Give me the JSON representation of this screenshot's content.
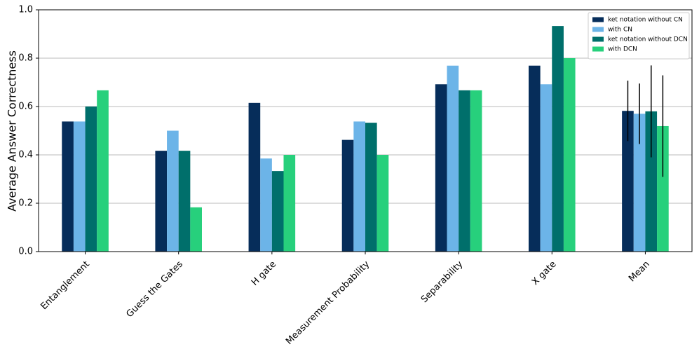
{
  "chart_data": {
    "type": "bar",
    "ylabel": "Average Answer Correctness",
    "categories": [
      "Entanglement",
      "Guess the Gates",
      "H gate",
      "Measurement Probability",
      "Separability",
      "X gate",
      "Mean"
    ],
    "series": [
      {
        "name": "ket notation without CN",
        "color": "#062d5a",
        "values": [
          0.538,
          0.417,
          0.615,
          0.462,
          0.692,
          0.769,
          0.582
        ],
        "errors": [
          null,
          null,
          null,
          null,
          null,
          null,
          0.125
        ]
      },
      {
        "name": "with CN",
        "color": "#6cb4e8",
        "values": [
          0.538,
          0.5,
          0.385,
          0.538,
          0.769,
          0.692,
          0.57
        ],
        "errors": [
          null,
          null,
          null,
          null,
          null,
          null,
          0.125
        ]
      },
      {
        "name": "ket notation without DCN",
        "color": "#006f6b",
        "values": [
          0.6,
          0.417,
          0.333,
          0.533,
          0.667,
          0.933,
          0.58
        ],
        "errors": [
          null,
          null,
          null,
          null,
          null,
          null,
          0.19
        ]
      },
      {
        "name": "with DCN",
        "color": "#27d07c",
        "values": [
          0.667,
          0.183,
          0.4,
          0.4,
          0.667,
          0.8,
          0.519
        ],
        "errors": [
          null,
          null,
          null,
          null,
          null,
          null,
          0.21
        ]
      }
    ],
    "ylim": [
      0,
      1
    ],
    "yticks": [
      {
        "value": 0,
        "label": "0.0"
      },
      0.2,
      0.4,
      0.6,
      0.8,
      {
        "value": 1,
        "label": "1.0"
      }
    ],
    "grid": true,
    "legend": "upper right"
  }
}
